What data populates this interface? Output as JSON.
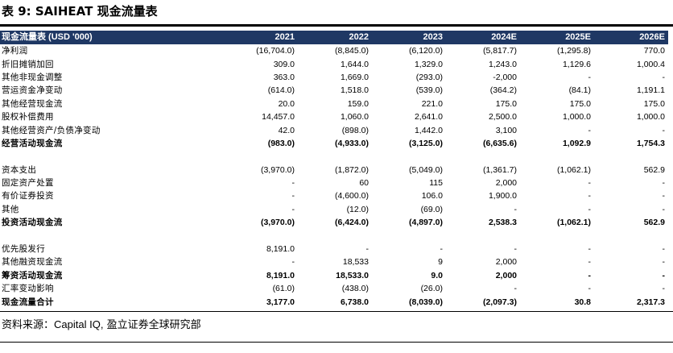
{
  "title": "表 9: SAIHEAT 现金流量表",
  "table": {
    "header": {
      "label": "现金流量表 (USD '000)",
      "years": [
        "2021",
        "2022",
        "2023",
        "2024E",
        "2025E",
        "2026E"
      ]
    },
    "rows": [
      {
        "label": "净利润",
        "bold": false,
        "values": [
          "(16,704.0)",
          "(8,845.0)",
          "(6,120.0)",
          "(5,817.7)",
          "(1,295.8)",
          "770.0"
        ]
      },
      {
        "label": "折旧摊销加回",
        "bold": false,
        "values": [
          "309.0",
          "1,644.0",
          "1,329.0",
          "1,243.0",
          "1,129.6",
          "1,000.4"
        ]
      },
      {
        "label": "其他非现金调整",
        "bold": false,
        "values": [
          "363.0",
          "1,669.0",
          "(293.0)",
          "-2,000",
          "-",
          "-"
        ]
      },
      {
        "label": "营运资金净变动",
        "bold": false,
        "values": [
          "(614.0)",
          "1,518.0",
          "(539.0)",
          "(364.2)",
          "(84.1)",
          "1,191.1"
        ]
      },
      {
        "label": "其他经营现金流",
        "bold": false,
        "values": [
          "20.0",
          "159.0",
          "221.0",
          "175.0",
          "175.0",
          "175.0"
        ]
      },
      {
        "label": "股权补偿费用",
        "bold": false,
        "values": [
          "14,457.0",
          "1,060.0",
          "2,641.0",
          "2,500.0",
          "1,000.0",
          "1,000.0"
        ]
      },
      {
        "label": "其他经营资产/负债净变动",
        "bold": false,
        "values": [
          "42.0",
          "(898.0)",
          "1,442.0",
          "3,100",
          "-",
          "-"
        ]
      },
      {
        "label": "经营活动现金流",
        "bold": true,
        "values": [
          "(983.0)",
          "(4,933.0)",
          "(3,125.0)",
          "(6,635.6)",
          "1,092.9",
          "1,754.3"
        ]
      },
      {
        "spacer": true
      },
      {
        "label": "资本支出",
        "bold": false,
        "values": [
          "(3,970.0)",
          "(1,872.0)",
          "(5,049.0)",
          "(1,361.7)",
          "(1,062.1)",
          "562.9"
        ]
      },
      {
        "label": "固定资产处置",
        "bold": false,
        "values": [
          "-",
          "60",
          "115",
          "2,000",
          "-",
          "-"
        ]
      },
      {
        "label": "有价证券投资",
        "bold": false,
        "values": [
          "-",
          "(4,600.0)",
          "106.0",
          "1,900.0",
          "-",
          "-"
        ]
      },
      {
        "label": "其他",
        "bold": false,
        "values": [
          "-",
          "(12.0)",
          "(69.0)",
          "-",
          "-",
          "-"
        ]
      },
      {
        "label": "投资活动现金流",
        "bold": true,
        "values": [
          "(3,970.0)",
          "(6,424.0)",
          "(4,897.0)",
          "2,538.3",
          "(1,062.1)",
          "562.9"
        ]
      },
      {
        "spacer": true
      },
      {
        "label": "优先股发行",
        "bold": false,
        "values": [
          "8,191.0",
          "-",
          "-",
          "-",
          "-",
          "-"
        ]
      },
      {
        "label": "其他融资现金流",
        "bold": false,
        "values": [
          "-",
          "18,533",
          "9",
          "2,000",
          "-",
          "-"
        ]
      },
      {
        "label": "筹资活动现金流",
        "bold": true,
        "values": [
          "8,191.0",
          "18,533.0",
          "9.0",
          "2,000",
          "-",
          "-"
        ]
      },
      {
        "label": "汇率变动影响",
        "bold": false,
        "values": [
          "(61.0)",
          "(438.0)",
          "(26.0)",
          "-",
          "-",
          "-"
        ]
      },
      {
        "label": "现金流量合计",
        "bold": true,
        "values": [
          "3,177.0",
          "6,738.0",
          "(8,039.0)",
          "(2,097.3)",
          "30.8",
          "2,317.3"
        ]
      }
    ]
  },
  "source": {
    "prefix": "资料来源：",
    "latin": "Capital IQ,",
    "suffix": " 盈立证券全球研究部"
  }
}
